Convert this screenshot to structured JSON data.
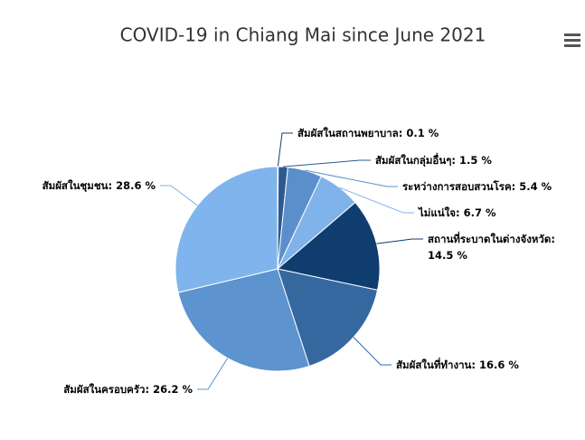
{
  "chart_data": {
    "type": "pie",
    "title": "COVID-19 in Chiang Mai since June 2021",
    "categories": [
      "สัมผัสในสถานพยาบาล:",
      "สัมผัสในกลุ่มอื่นๆ:",
      "ระหว่างการสอบสวนโรค:",
      "ไม่แน่ใจ:",
      "สถานที่ระบาดในต่างจังหวัด:",
      "สัมผัสในที่ทำงาน:",
      "สัมผัสในครอบครัว:",
      "สัมผัสในชุมชน:"
    ],
    "values": [
      0.1,
      1.5,
      5.4,
      6.7,
      14.5,
      16.6,
      26.2,
      28.6
    ],
    "value_labels": [
      "0.1 %",
      "1.5 %",
      "5.4 %",
      "6.7 %",
      "14.5 %",
      "16.6 %",
      "26.2 %",
      "28.6 %"
    ],
    "colors": [
      "#1d3b6b",
      "#2c5a90",
      "#5b8fcc",
      "#80b3ea",
      "#0f3d70",
      "#3668a0",
      "#5d93cf",
      "#7fb5ec"
    ]
  }
}
